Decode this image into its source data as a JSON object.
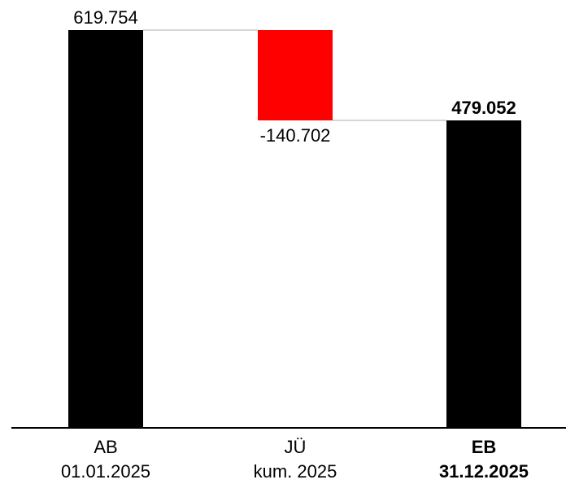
{
  "chart_data": {
    "type": "waterfall",
    "categories": [
      {
        "line1": "AB",
        "line2": "01.01.2025",
        "bold": false
      },
      {
        "line1": "JÜ",
        "line2": "kum. 2025",
        "bold": false
      },
      {
        "line1": "EB",
        "line2": "31.12.2025",
        "bold": true
      }
    ],
    "steps": [
      {
        "kind": "total",
        "value": 619754,
        "label": "619.754",
        "color": "#000000",
        "bold": false
      },
      {
        "kind": "delta",
        "value": -140702,
        "label": "-140.702",
        "color": "#ff0000",
        "bold": false
      },
      {
        "kind": "total",
        "value": 479052,
        "label": "479.052",
        "color": "#000000",
        "bold": true
      }
    ],
    "ylim": [
      0,
      619754
    ],
    "connector_color": "#c8c8c8",
    "axis_color": "#000000"
  }
}
